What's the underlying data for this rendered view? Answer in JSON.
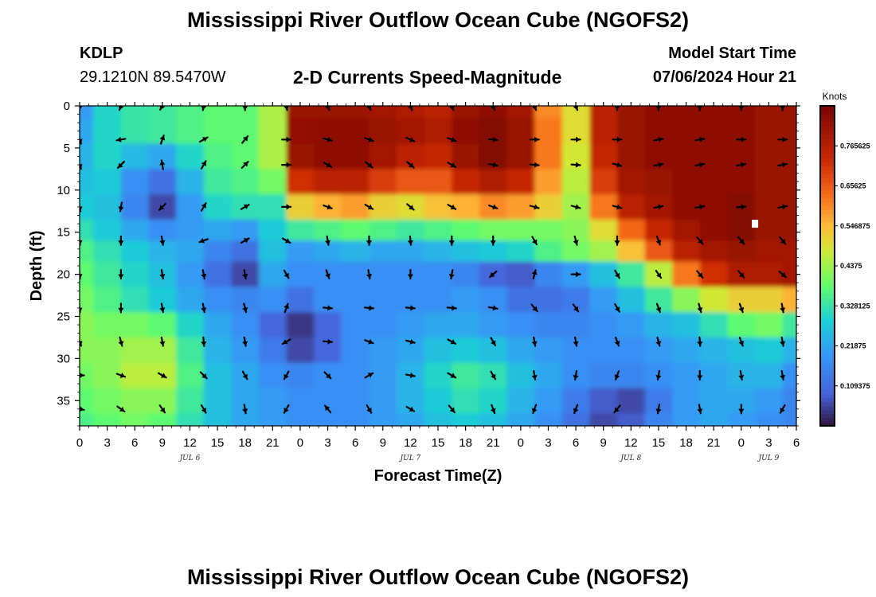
{
  "header": {
    "title": "Mississippi River Outflow Ocean Cube (NGOFS2)",
    "station": "KDLP",
    "coords": "29.1210N  89.5470W",
    "subtitle": "2-D Currents Speed-Magnitude",
    "start_label": "Model Start Time",
    "start_value": "07/06/2024 Hour 21"
  },
  "footer": {
    "title": "Mississippi River Outflow Ocean Cube (NGOFS2)"
  },
  "chart_data": {
    "type": "heatmap",
    "title": "2-D Currents Speed-Magnitude",
    "xlabel": "Forecast Time(Z)",
    "ylabel": "Depth (ft)",
    "x_ticks": [
      "0",
      "3",
      "6",
      "9",
      "12",
      "15",
      "18",
      "21",
      "0",
      "3",
      "6",
      "9",
      "12",
      "15",
      "18",
      "21",
      "0",
      "3",
      "6",
      "9",
      "12",
      "15",
      "18",
      "21",
      "0",
      "3",
      "6"
    ],
    "x_hours": [
      0,
      3,
      6,
      9,
      12,
      15,
      18,
      21,
      24,
      27,
      30,
      33,
      36,
      39,
      42,
      45,
      48,
      51,
      54,
      57,
      60,
      63,
      66,
      69,
      72,
      75,
      78
    ],
    "xlim": [
      0,
      78
    ],
    "date_labels": [
      {
        "label": "JUL 6",
        "hour": 12
      },
      {
        "label": "JUL 7",
        "hour": 36
      },
      {
        "label": "JUL 8",
        "hour": 60
      },
      {
        "label": "JUL 9",
        "hour": 75
      }
    ],
    "y_ticks": [
      0,
      5,
      10,
      15,
      20,
      25,
      30,
      35
    ],
    "ylim": [
      0,
      38
    ],
    "y_reversed": true,
    "colorbar": {
      "unit": "Knots",
      "ticks": [
        "0.765625",
        "0.65625",
        "0.546875",
        "0.4375",
        "0.328125",
        "0.21875",
        "0.109375"
      ],
      "tick_values": [
        0.765625,
        0.65625,
        0.546875,
        0.4375,
        0.328125,
        0.21875,
        0.109375
      ],
      "range": [
        0,
        0.875
      ]
    },
    "speed_field": {
      "x_hours": [
        0,
        3,
        6,
        9,
        12,
        15,
        18,
        21,
        24,
        27,
        30,
        33,
        36,
        39,
        42,
        45,
        48,
        51,
        54,
        57,
        60,
        63,
        66,
        69,
        72,
        75,
        78
      ],
      "depths_ft": [
        0,
        3,
        6,
        9,
        12,
        15,
        17,
        20,
        23,
        26,
        29,
        32,
        35,
        38
      ],
      "values_knots": [
        [
          0.2,
          0.3,
          0.33,
          0.34,
          0.36,
          0.38,
          0.38,
          0.45,
          0.82,
          0.82,
          0.82,
          0.8,
          0.78,
          0.76,
          0.82,
          0.84,
          0.8,
          0.6,
          0.5,
          0.76,
          0.82,
          0.84,
          0.84,
          0.84,
          0.84,
          0.82,
          0.82
        ],
        [
          0.22,
          0.3,
          0.33,
          0.34,
          0.36,
          0.38,
          0.38,
          0.45,
          0.83,
          0.84,
          0.84,
          0.82,
          0.8,
          0.78,
          0.84,
          0.86,
          0.82,
          0.62,
          0.5,
          0.76,
          0.82,
          0.84,
          0.84,
          0.84,
          0.84,
          0.82,
          0.82
        ],
        [
          0.24,
          0.3,
          0.25,
          0.22,
          0.3,
          0.36,
          0.38,
          0.45,
          0.82,
          0.84,
          0.84,
          0.8,
          0.76,
          0.74,
          0.82,
          0.86,
          0.82,
          0.62,
          0.48,
          0.74,
          0.82,
          0.84,
          0.84,
          0.84,
          0.84,
          0.82,
          0.82
        ],
        [
          0.26,
          0.28,
          0.18,
          0.12,
          0.24,
          0.34,
          0.36,
          0.4,
          0.72,
          0.76,
          0.76,
          0.7,
          0.66,
          0.66,
          0.74,
          0.78,
          0.74,
          0.58,
          0.46,
          0.7,
          0.8,
          0.82,
          0.84,
          0.84,
          0.84,
          0.82,
          0.82
        ],
        [
          0.28,
          0.26,
          0.16,
          0.06,
          0.2,
          0.3,
          0.32,
          0.32,
          0.52,
          0.56,
          0.58,
          0.52,
          0.5,
          0.54,
          0.56,
          0.6,
          0.58,
          0.52,
          0.44,
          0.62,
          0.76,
          0.8,
          0.84,
          0.84,
          0.86,
          0.82,
          0.82
        ],
        [
          0.32,
          0.28,
          0.22,
          0.18,
          0.2,
          0.22,
          0.2,
          0.28,
          0.34,
          0.36,
          0.38,
          0.36,
          0.34,
          0.36,
          0.38,
          0.4,
          0.4,
          0.4,
          0.42,
          0.5,
          0.64,
          0.74,
          0.8,
          0.84,
          0.86,
          0.82,
          0.82
        ],
        [
          0.36,
          0.32,
          0.28,
          0.24,
          0.22,
          0.16,
          0.12,
          0.26,
          0.2,
          0.22,
          0.24,
          0.22,
          0.22,
          0.24,
          0.26,
          0.28,
          0.3,
          0.36,
          0.4,
          0.44,
          0.54,
          0.66,
          0.76,
          0.8,
          0.82,
          0.8,
          0.8
        ],
        [
          0.38,
          0.34,
          0.3,
          0.26,
          0.2,
          0.12,
          0.06,
          0.22,
          0.18,
          0.18,
          0.18,
          0.18,
          0.18,
          0.18,
          0.16,
          0.1,
          0.08,
          0.16,
          0.2,
          0.26,
          0.34,
          0.46,
          0.62,
          0.72,
          0.78,
          0.78,
          0.8
        ],
        [
          0.4,
          0.36,
          0.32,
          0.28,
          0.22,
          0.18,
          0.16,
          0.18,
          0.12,
          0.18,
          0.18,
          0.18,
          0.18,
          0.18,
          0.2,
          0.18,
          0.12,
          0.12,
          0.14,
          0.2,
          0.26,
          0.34,
          0.42,
          0.48,
          0.52,
          0.52,
          0.56
        ],
        [
          0.42,
          0.4,
          0.4,
          0.38,
          0.3,
          0.22,
          0.18,
          0.1,
          0.04,
          0.1,
          0.18,
          0.18,
          0.2,
          0.22,
          0.22,
          0.2,
          0.18,
          0.16,
          0.16,
          0.18,
          0.2,
          0.24,
          0.26,
          0.32,
          0.38,
          0.4,
          0.34
        ],
        [
          0.42,
          0.42,
          0.44,
          0.44,
          0.34,
          0.24,
          0.2,
          0.14,
          0.06,
          0.1,
          0.18,
          0.2,
          0.22,
          0.26,
          0.28,
          0.26,
          0.22,
          0.2,
          0.18,
          0.18,
          0.18,
          0.2,
          0.22,
          0.24,
          0.26,
          0.28,
          0.24
        ],
        [
          0.4,
          0.42,
          0.46,
          0.46,
          0.36,
          0.26,
          0.22,
          0.18,
          0.16,
          0.18,
          0.18,
          0.2,
          0.24,
          0.3,
          0.34,
          0.32,
          0.26,
          0.22,
          0.18,
          0.16,
          0.16,
          0.18,
          0.2,
          0.22,
          0.24,
          0.24,
          0.18
        ],
        [
          0.38,
          0.4,
          0.42,
          0.42,
          0.34,
          0.26,
          0.22,
          0.2,
          0.18,
          0.18,
          0.18,
          0.2,
          0.24,
          0.28,
          0.32,
          0.3,
          0.24,
          0.2,
          0.14,
          0.08,
          0.06,
          0.14,
          0.2,
          0.22,
          0.22,
          0.2,
          0.16
        ],
        [
          0.36,
          0.38,
          0.4,
          0.38,
          0.32,
          0.26,
          0.22,
          0.2,
          0.18,
          0.18,
          0.18,
          0.2,
          0.22,
          0.26,
          0.28,
          0.26,
          0.22,
          0.18,
          0.12,
          0.06,
          0.08,
          0.16,
          0.2,
          0.22,
          0.2,
          0.18,
          0.16
        ]
      ]
    },
    "vectors": {
      "x_hours": [
        0,
        4.5,
        9,
        13.5,
        18,
        22.5,
        27,
        31.5,
        36,
        40.5,
        45,
        49.5,
        54,
        58.5,
        63,
        67.5,
        72,
        76.5
      ],
      "depths_ft": [
        0,
        4,
        7,
        12,
        16,
        20,
        24,
        28,
        32,
        36
      ],
      "directions_deg": [
        [
          180,
          200,
          210,
          190,
          180,
          170,
          160,
          160,
          160,
          160,
          160,
          160,
          160,
          180,
          180,
          180,
          180,
          180
        ],
        [
          160,
          260,
          20,
          60,
          40,
          90,
          105,
          110,
          115,
          110,
          95,
          90,
          90,
          90,
          80,
          80,
          90,
          90
        ],
        [
          160,
          225,
          350,
          30,
          45,
          90,
          120,
          130,
          130,
          120,
          100,
          95,
          95,
          105,
          80,
          80,
          80,
          80
        ],
        [
          170,
          190,
          225,
          30,
          60,
          90,
          110,
          120,
          130,
          120,
          110,
          105,
          105,
          105,
          80,
          80,
          85,
          80
        ],
        [
          175,
          180,
          170,
          250,
          60,
          120,
          170,
          180,
          175,
          180,
          180,
          150,
          165,
          180,
          160,
          140,
          140,
          140
        ],
        [
          175,
          180,
          170,
          170,
          170,
          150,
          160,
          170,
          180,
          190,
          230,
          15,
          90,
          150,
          145,
          140,
          140,
          130
        ],
        [
          175,
          180,
          170,
          170,
          165,
          20,
          95,
          95,
          95,
          95,
          100,
          140,
          145,
          150,
          160,
          165,
          160,
          170
        ],
        [
          160,
          165,
          170,
          175,
          170,
          240,
          95,
          110,
          105,
          120,
          150,
          170,
          170,
          160,
          165,
          175,
          160,
          170
        ],
        [
          90,
          110,
          120,
          135,
          150,
          210,
          135,
          60,
          100,
          120,
          150,
          170,
          190,
          200,
          190,
          180,
          170,
          170
        ],
        [
          100,
          125,
          145,
          150,
          170,
          210,
          320,
          150,
          120,
          140,
          160,
          200,
          200,
          220,
          190,
          170,
          180,
          210
        ]
      ]
    },
    "marker": {
      "x_hour": 73.5,
      "depth_ft": 14.0
    }
  }
}
